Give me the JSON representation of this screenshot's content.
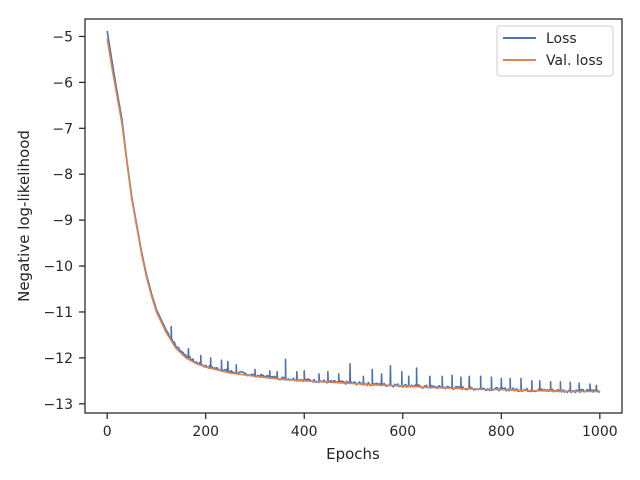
{
  "chart_data": {
    "type": "line",
    "title": "",
    "xlabel": "Epochs",
    "ylabel": "Negative log-likelihood",
    "xlim": [
      -45,
      1045
    ],
    "ylim": [
      -13.2,
      -4.62
    ],
    "xticks": [
      0,
      200,
      400,
      600,
      800,
      1000
    ],
    "yticks": [
      -13,
      -12,
      -11,
      -10,
      -9,
      -8,
      -7,
      -6,
      -5
    ],
    "xtick_labels": [
      "0",
      "200",
      "400",
      "600",
      "800",
      "1000"
    ],
    "ytick_labels": [
      "−13",
      "−12",
      "−11",
      "−10",
      "−9",
      "−8",
      "−7",
      "−6",
      "−5"
    ],
    "grid": false,
    "legend_position": "top-right",
    "series": [
      {
        "name": "Loss",
        "color": "#4c72b0",
        "x": [
          0,
          10,
          20,
          30,
          40,
          50,
          60,
          70,
          80,
          90,
          100,
          120,
          140,
          160,
          180,
          200,
          250,
          300,
          350,
          400,
          450,
          500,
          550,
          600,
          650,
          700,
          750,
          800,
          850,
          900,
          950,
          1000
        ],
        "y": [
          -4.88,
          -5.55,
          -6.2,
          -6.8,
          -7.7,
          -8.5,
          -9.1,
          -9.7,
          -10.2,
          -10.6,
          -10.95,
          -11.4,
          -11.75,
          -11.95,
          -12.1,
          -12.18,
          -12.3,
          -12.38,
          -12.44,
          -12.48,
          -12.52,
          -12.55,
          -12.58,
          -12.6,
          -12.63,
          -12.65,
          -12.67,
          -12.68,
          -12.7,
          -12.71,
          -12.72,
          -12.72
        ],
        "spikes": [
          [
            130,
            -11.32
          ],
          [
            165,
            -11.8
          ],
          [
            190,
            -11.95
          ],
          [
            210,
            -12.0
          ],
          [
            232,
            -12.05
          ],
          [
            245,
            -12.08
          ],
          [
            262,
            -12.15
          ],
          [
            300,
            -12.25
          ],
          [
            330,
            -12.28
          ],
          [
            345,
            -12.3
          ],
          [
            362,
            -12.03
          ],
          [
            385,
            -12.3
          ],
          [
            400,
            -12.28
          ],
          [
            430,
            -12.35
          ],
          [
            448,
            -12.3
          ],
          [
            470,
            -12.35
          ],
          [
            493,
            -12.13
          ],
          [
            520,
            -12.4
          ],
          [
            538,
            -12.25
          ],
          [
            557,
            -12.35
          ],
          [
            575,
            -12.17
          ],
          [
            598,
            -12.3
          ],
          [
            612,
            -12.4
          ],
          [
            628,
            -12.22
          ],
          [
            655,
            -12.4
          ],
          [
            680,
            -12.4
          ],
          [
            700,
            -12.38
          ],
          [
            718,
            -12.42
          ],
          [
            735,
            -12.4
          ],
          [
            758,
            -12.4
          ],
          [
            780,
            -12.42
          ],
          [
            800,
            -12.45
          ],
          [
            818,
            -12.45
          ],
          [
            840,
            -12.45
          ],
          [
            862,
            -12.5
          ],
          [
            878,
            -12.5
          ],
          [
            900,
            -12.52
          ],
          [
            920,
            -12.52
          ],
          [
            940,
            -12.53
          ],
          [
            958,
            -12.55
          ],
          [
            980,
            -12.57
          ],
          [
            993,
            -12.6
          ]
        ]
      },
      {
        "name": "Val. loss",
        "color": "#dd8452",
        "x": [
          0,
          10,
          20,
          30,
          40,
          50,
          60,
          70,
          80,
          90,
          100,
          120,
          140,
          160,
          180,
          200,
          250,
          300,
          350,
          400,
          450,
          500,
          550,
          600,
          650,
          700,
          750,
          800,
          850,
          900,
          950,
          1000
        ],
        "y": [
          -5.05,
          -5.7,
          -6.3,
          -6.9,
          -7.75,
          -8.55,
          -9.15,
          -9.75,
          -10.25,
          -10.65,
          -11.0,
          -11.45,
          -11.8,
          -12.0,
          -12.12,
          -12.2,
          -12.33,
          -12.4,
          -12.46,
          -12.5,
          -12.53,
          -12.56,
          -12.59,
          -12.61,
          -12.64,
          -12.66,
          -12.68,
          -12.69,
          -12.71,
          -12.72,
          -12.73,
          -12.73
        ]
      }
    ]
  }
}
